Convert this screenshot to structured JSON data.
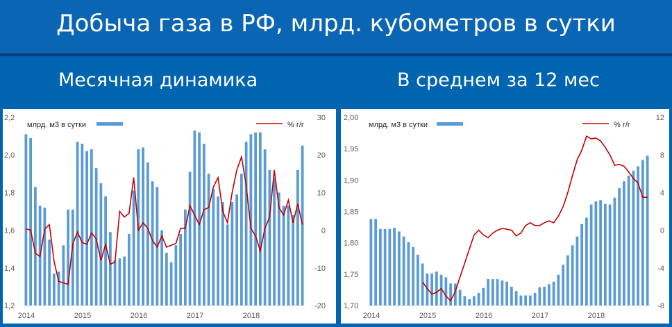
{
  "header": {
    "title": "Добыча газа в РФ, млрд. кубометров в сутки",
    "subtitle_left": "Месячная динамика",
    "subtitle_right": "В среднем за 12 мес"
  },
  "colors": {
    "bar": "#5b9bd5",
    "line": "#c00000",
    "background": "#0064b0"
  },
  "chart_data": [
    {
      "type": "bar",
      "title": "",
      "legend": [
        "млрд. м3 в сутки",
        "% г/г"
      ],
      "legend_position": "top",
      "x_tick_labels": [
        "2014",
        "2015",
        "2016",
        "2017",
        "2018"
      ],
      "y_left": {
        "ticks": [
          "1,2",
          "1,4",
          "1,6",
          "1,8",
          "2,0",
          "2,2"
        ],
        "min": 1.2,
        "max": 2.2
      },
      "y_right": {
        "ticks": [
          "-20",
          "-10",
          "0",
          "10",
          "20",
          "30"
        ],
        "min": -20,
        "max": 30
      },
      "grid": false,
      "series": [
        {
          "name": "млрд. м3 в сутки",
          "type": "bar",
          "axis": "left",
          "values": [
            2.11,
            2.09,
            1.83,
            1.73,
            1.72,
            1.55,
            1.37,
            1.38,
            1.52,
            1.71,
            1.71,
            2.07,
            2.06,
            2.02,
            2.03,
            1.93,
            1.85,
            1.78,
            1.59,
            1.44,
            1.45,
            1.46,
            1.58,
            1.81,
            2.03,
            2.04,
            1.96,
            1.86,
            1.83,
            1.6,
            1.48,
            1.43,
            1.52,
            1.58,
            1.71,
            1.91,
            2.13,
            2.12,
            2.06,
            1.9,
            1.82,
            1.78,
            1.75,
            1.63,
            1.75,
            1.79,
            1.9,
            2.07,
            2.11,
            2.12,
            2.12,
            2.03,
            1.92,
            1.88,
            1.8,
            1.73,
            1.73,
            1.68,
            1.92,
            2.05
          ]
        },
        {
          "name": "% г/г",
          "type": "line",
          "axis": "right",
          "values": [
            0.3,
            0.1,
            -6.1,
            -7.0,
            0.3,
            1.5,
            -8.3,
            -13.6,
            -14.0,
            -14.4,
            -3.6,
            -0.5,
            -3.3,
            -3.7,
            -0.7,
            -2.3,
            -8.0,
            -3.8,
            -9.0,
            -8.5,
            5.0,
            3.5,
            4.5,
            14.0,
            0.0,
            2.0,
            0.5,
            -2.7,
            -4.5,
            -1.5,
            -4.5,
            -4.0,
            -3.5,
            0.5,
            0.5,
            6.5,
            4.0,
            1.5,
            5.5,
            6.0,
            11.5,
            14.0,
            5.0,
            2.0,
            10.0,
            16.0,
            19.5,
            12.0,
            0.5,
            -1.5,
            -5.5,
            0.5,
            3.5,
            16.0,
            6.0,
            4.0,
            8.0,
            2.0,
            7.0,
            1.5
          ]
        }
      ]
    },
    {
      "type": "bar",
      "title": "",
      "legend": [
        "млрд. м3 в сутки",
        "% г/г"
      ],
      "legend_position": "top",
      "x_tick_labels": [
        "2014",
        "2015",
        "2016",
        "2017",
        "2018"
      ],
      "y_left": {
        "ticks": [
          "1,70",
          "1,75",
          "1,80",
          "1,85",
          "1,90",
          "1,95",
          "2,00"
        ],
        "min": 1.7,
        "max": 2.0
      },
      "y_right": {
        "ticks": [
          "-8",
          "-4",
          "0",
          "4",
          "8",
          "12"
        ],
        "min": -8,
        "max": 12
      },
      "grid": false,
      "series": [
        {
          "name": "млрд. м3 в сутки",
          "type": "bar",
          "axis": "left",
          "values": [
            1.838,
            1.838,
            1.822,
            1.822,
            1.822,
            1.824,
            1.818,
            1.81,
            1.801,
            1.793,
            1.781,
            1.767,
            1.751,
            1.751,
            1.754,
            1.749,
            1.745,
            1.735,
            1.735,
            1.725,
            1.715,
            1.71,
            1.715,
            1.72,
            1.728,
            1.742,
            1.742,
            1.742,
            1.74,
            1.738,
            1.73,
            1.723,
            1.716,
            1.716,
            1.716,
            1.72,
            1.729,
            1.73,
            1.734,
            1.738,
            1.749,
            1.765,
            1.78,
            1.796,
            1.81,
            1.83,
            1.84,
            1.861,
            1.866,
            1.868,
            1.862,
            1.861,
            1.872,
            1.887,
            1.898,
            1.907,
            1.915,
            1.922,
            1.932,
            1.939
          ]
        },
        {
          "name": "% г/г",
          "type": "line",
          "axis": "right",
          "values": [
            null,
            null,
            null,
            null,
            null,
            null,
            null,
            null,
            null,
            null,
            null,
            -5.5,
            -6.2,
            -6.8,
            -6.6,
            -6.2,
            -7.0,
            -7.5,
            -6.5,
            -5.0,
            -3.5,
            -2.0,
            -0.5,
            0.0,
            -0.5,
            -0.8,
            -0.3,
            0.0,
            0.2,
            0.1,
            0.0,
            -0.6,
            -0.3,
            0.5,
            0.8,
            0.5,
            0.5,
            0.8,
            1.0,
            0.8,
            1.5,
            2.5,
            4.0,
            5.8,
            7.5,
            8.5,
            10.0,
            9.7,
            9.8,
            9.5,
            8.8,
            8.0,
            6.9,
            7.0,
            6.8,
            6.2,
            5.5,
            5.0,
            3.5,
            3.5
          ]
        }
      ]
    }
  ]
}
